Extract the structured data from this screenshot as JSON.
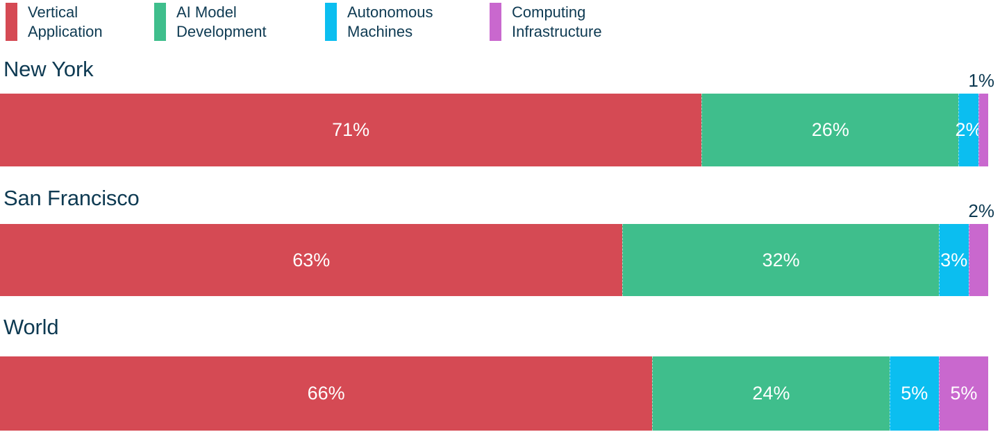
{
  "page": {
    "background": "#FFFFFF",
    "text_color": "#0E3A52"
  },
  "legend": {
    "position": "top",
    "items": [
      {
        "label": "Vertical Application",
        "color": "#D54A54"
      },
      {
        "label": "AI Model Development",
        "color": "#3FBE8C"
      },
      {
        "label": "Autonomous Machines",
        "color": "#0BBEF0"
      },
      {
        "label": "Computing Infrastructure",
        "color": "#C968CE"
      }
    ]
  },
  "chart_data": {
    "type": "bar",
    "variant": "horizontal-stacked",
    "unit": "percent",
    "title": "",
    "xlabel": "",
    "ylabel": "",
    "xlim": [
      0,
      100
    ],
    "grid": false,
    "legend_position": "top",
    "categories": [
      "New York",
      "San Francisco",
      "World"
    ],
    "series": [
      {
        "name": "Vertical Application",
        "color": "#D54A54",
        "values": [
          71,
          63,
          66
        ]
      },
      {
        "name": "AI Model Development",
        "color": "#3FBE8C",
        "values": [
          26,
          32,
          24
        ]
      },
      {
        "name": "Autonomous Machines",
        "color": "#0BBEF0",
        "values": [
          2,
          3,
          5
        ]
      },
      {
        "name": "Computing Infrastructure",
        "color": "#C968CE",
        "values": [
          1,
          2,
          5
        ]
      }
    ],
    "value_labels": [
      [
        "71%",
        "26%",
        "2%",
        "1%"
      ],
      [
        "63%",
        "32%",
        "3%",
        "2%"
      ],
      [
        "66%",
        "24%",
        "5%",
        "5%"
      ]
    ],
    "label_positions": [
      [
        "inside",
        "inside",
        "inside",
        "above"
      ],
      [
        "inside",
        "inside",
        "inside",
        "above"
      ],
      [
        "inside",
        "inside",
        "inside",
        "inside"
      ]
    ],
    "inside_label_color": "#FFFFFF",
    "above_label_color": "#0E3A52"
  }
}
